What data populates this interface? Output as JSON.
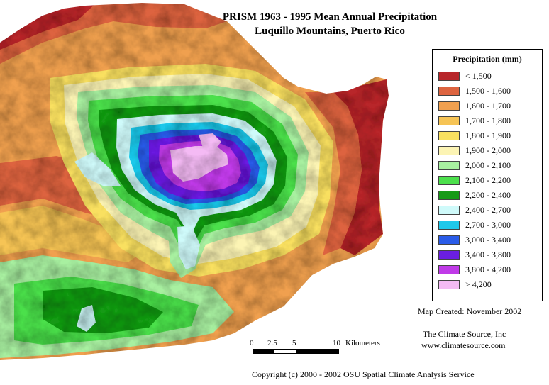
{
  "title": {
    "line1": "PRISM 1963 - 1995 Mean Annual Precipitation",
    "line2": "Luquillo Mountains, Puerto Rico"
  },
  "legend": {
    "title": "Precipitation (mm)",
    "items": [
      {
        "label": "< 1,500",
        "color": "#b8262a"
      },
      {
        "label": "1,500 - 1,600",
        "color": "#dd6440"
      },
      {
        "label": "1,600 - 1,700",
        "color": "#f0a050"
      },
      {
        "label": "1,700 - 1,800",
        "color": "#f6c455"
      },
      {
        "label": "1,800 - 1,900",
        "color": "#f9e060"
      },
      {
        "label": "1,900 - 2,000",
        "color": "#fcf4b4"
      },
      {
        "label": "2,000 - 2,100",
        "color": "#a8f0a0"
      },
      {
        "label": "2,100 - 2,200",
        "color": "#4ce04c"
      },
      {
        "label": "2,200 - 2,400",
        "color": "#179a17"
      },
      {
        "label": "2,400 - 2,700",
        "color": "#cffafa"
      },
      {
        "label": "2,700 - 3,000",
        "color": "#1fc8ea"
      },
      {
        "label": "3,000 - 3,400",
        "color": "#2a5ce8"
      },
      {
        "label": "3,400 - 3,800",
        "color": "#6a1ee0"
      },
      {
        "label": "3,800 - 4,200",
        "color": "#c03ae8"
      },
      {
        "label": "> 4,200",
        "color": "#f4baf4"
      }
    ]
  },
  "created": "Map Created: November 2002",
  "source": {
    "name": "The Climate Source, Inc",
    "url": "www.climatesource.com"
  },
  "scale": {
    "ticks": [
      "0",
      "2.5",
      "5",
      "10"
    ],
    "unit": "Kilometers"
  },
  "copyright": "Copyright (c) 2000 - 2002 OSU Spatial Climate Analysis Service"
}
